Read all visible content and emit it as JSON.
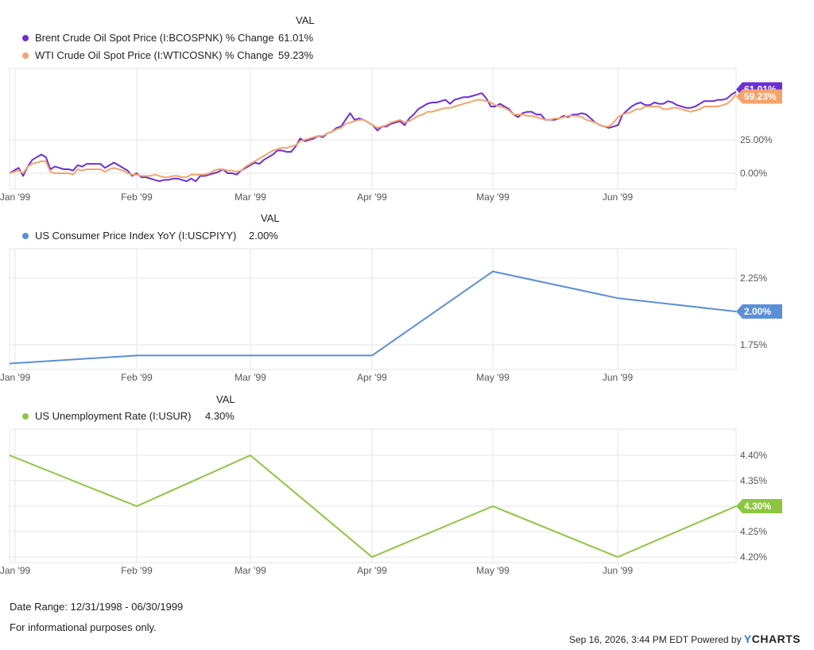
{
  "colors": {
    "brent": "#6a2fd6",
    "wti": "#f5a36c",
    "cpi": "#5b8fd8",
    "unemp": "#8cc63f",
    "grid": "#e6e6e6",
    "axis_text": "#555555"
  },
  "legend_header": "VAL",
  "chart_data": [
    {
      "type": "line",
      "x_ticks": [
        "Jan '99",
        "Feb '99",
        "Mar '99",
        "Apr '99",
        "May '99",
        "Jun '99"
      ],
      "y_ticks": [
        "25.00%",
        "0.00%"
      ],
      "ylim": [
        -5,
        70
      ],
      "series": [
        {
          "name": "Brent Crude Oil Spot Price (I:BCOSPNK) % Change",
          "last_value": "61.01%",
          "values": [
            0,
            2,
            4,
            -2,
            5,
            10,
            12,
            14,
            12,
            3,
            5,
            4,
            3,
            3,
            2,
            6,
            5,
            7,
            7,
            7,
            7,
            4,
            6,
            8,
            6,
            4,
            2,
            -2,
            0,
            -3,
            -3,
            -4,
            -5,
            -6,
            -5,
            -5,
            -4,
            -4,
            -5,
            -6,
            -4,
            -6,
            -2,
            -2,
            -1,
            0,
            1,
            3,
            0,
            0,
            -1,
            2,
            4,
            6,
            8,
            7,
            10,
            12,
            14,
            17,
            17,
            16,
            16,
            20,
            26,
            24,
            25,
            26,
            28,
            27,
            30,
            31,
            34,
            35,
            40,
            45,
            40,
            41,
            40,
            38,
            36,
            32,
            35,
            35,
            37,
            38,
            39,
            36,
            41,
            44,
            48,
            50,
            52,
            53,
            53,
            54,
            55,
            52,
            55,
            56,
            57,
            57,
            58,
            59,
            60,
            56,
            50,
            50,
            52,
            50,
            48,
            44,
            42,
            45,
            46,
            46,
            44,
            44,
            40,
            40,
            40,
            41,
            43,
            42,
            44,
            44,
            45,
            44,
            41,
            38,
            36,
            35,
            34,
            35,
            36,
            44,
            47,
            50,
            52,
            53,
            51,
            51,
            53,
            52,
            52,
            54,
            53,
            51,
            50,
            49,
            49,
            50,
            52,
            54,
            54,
            54,
            55,
            55,
            56,
            59,
            61.01
          ]
        },
        {
          "name": "WTI Crude Oil Spot Price (I:WTICOSNK) % Change",
          "last_value": "59.23%",
          "values": [
            0,
            1,
            2,
            0,
            5,
            7,
            8,
            9,
            9,
            1,
            0,
            0,
            0,
            0,
            -1,
            3,
            2,
            3,
            3,
            3,
            3,
            1,
            3,
            4,
            3,
            2,
            0,
            -1,
            -1,
            -2,
            -2,
            -2,
            -1,
            -2,
            -3,
            -3,
            -2,
            -2,
            -3,
            -3,
            -1,
            -1,
            -1,
            -1,
            0,
            2,
            3,
            3,
            2,
            2,
            1,
            2,
            5,
            7,
            9,
            11,
            13,
            15,
            17,
            18,
            19,
            19,
            20,
            21,
            24,
            25,
            26,
            27,
            28,
            28,
            30,
            31,
            33,
            34,
            37,
            38,
            39,
            40,
            40,
            38,
            36,
            34,
            35,
            36,
            38,
            39,
            40,
            38,
            39,
            41,
            43,
            44,
            46,
            46,
            47,
            48,
            49,
            49,
            50,
            51,
            52,
            53,
            54,
            55,
            55,
            54,
            53,
            51,
            50,
            49,
            47,
            44,
            44,
            44,
            43,
            43,
            42,
            41,
            40,
            40,
            41,
            41,
            42,
            43,
            43,
            43,
            42,
            40,
            39,
            38,
            36,
            35,
            35,
            38,
            42,
            44,
            45,
            46,
            48,
            48,
            50,
            50,
            50,
            50,
            48,
            48,
            49,
            49,
            48,
            47,
            46,
            47,
            48,
            50,
            50,
            50,
            50,
            51,
            52,
            55,
            59.23
          ]
        }
      ]
    },
    {
      "type": "line",
      "x_ticks": [
        "Jan '99",
        "Feb '99",
        "Mar '99",
        "Apr '99",
        "May '99",
        "Jun '99"
      ],
      "y_ticks": [
        "2.25%",
        "1.75%"
      ],
      "ylim": [
        1.55,
        2.55
      ],
      "series": [
        {
          "name": "US Consumer Price Index YoY (I:USCPIYY)",
          "last_value": "2.00%",
          "x": [
            "1998-12-31",
            "1999-01-31",
            "1999-02-28",
            "1999-03-31",
            "1999-04-30",
            "1999-05-31",
            "1999-06-30"
          ],
          "values": [
            1.61,
            1.67,
            1.67,
            1.67,
            2.3,
            2.1,
            2.0
          ]
        }
      ]
    },
    {
      "type": "line",
      "x_ticks": [
        "Jan '99",
        "Feb '99",
        "Mar '99",
        "Apr '99",
        "May '99",
        "Jun '99"
      ],
      "y_ticks": [
        "4.40%",
        "4.35%",
        "4.30%",
        "4.25%",
        "4.20%"
      ],
      "ylim": [
        4.19,
        4.45
      ],
      "series": [
        {
          "name": "US Unemployment Rate (I:USUR)",
          "last_value": "4.30%",
          "x": [
            "1998-12-31",
            "1999-01-31",
            "1999-02-28",
            "1999-03-31",
            "1999-04-30",
            "1999-05-31",
            "1999-06-30"
          ],
          "values": [
            4.4,
            4.3,
            4.4,
            4.2,
            4.3,
            4.2,
            4.3
          ]
        }
      ]
    }
  ],
  "footer": {
    "date_range": "Date Range: 12/31/1998 - 06/30/1999",
    "disclaimer": "For informational purposes only.",
    "timestamp": "Sep 16, 2026, 3:44 PM EDT Powered by",
    "brand": "YCHARTS"
  }
}
